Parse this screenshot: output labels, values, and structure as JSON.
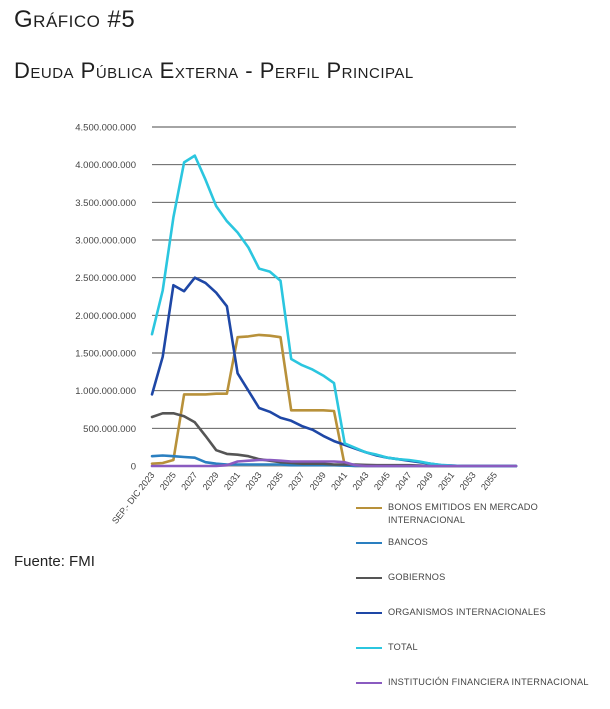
{
  "header": {
    "figure_label": "Gráfico #5",
    "title": "Deuda Pública Externa - Perfil Principal"
  },
  "source": "Fuente: FMI",
  "chart_data": {
    "type": "line",
    "title": "",
    "xlabel": "",
    "ylabel": "",
    "ylim": [
      0,
      4500000000
    ],
    "yticks": [
      0,
      500000000,
      1000000000,
      1500000000,
      2000000000,
      2500000000,
      3000000000,
      3500000000,
      4000000000,
      4500000000
    ],
    "ytick_labels": [
      "0",
      "500.000.000",
      "1.000.000.000",
      "1.500.000.000",
      "2.000.000.000",
      "2.500.000.000",
      "3.000.000.000",
      "3.500.000.000",
      "4.000.000.000",
      "4.500.000.000"
    ],
    "categories": [
      "SEP.- DIC 2023",
      "2024",
      "2025",
      "2026",
      "2027",
      "2028",
      "2029",
      "2030",
      "2031",
      "2032",
      "2033",
      "2034",
      "2035",
      "2036",
      "2037",
      "2038",
      "2039",
      "2040",
      "2041",
      "2042",
      "2043",
      "2044",
      "2045",
      "2046",
      "2047",
      "2048",
      "2049",
      "2050",
      "2051",
      "2052",
      "2053",
      "2054",
      "2055",
      "2056",
      "2057"
    ],
    "x_tick_labels": [
      "SEP.- DIC 2023",
      "2025",
      "2027",
      "2029",
      "2031",
      "2033",
      "2035",
      "2037",
      "2039",
      "2041",
      "2043",
      "2045",
      "2047",
      "2049",
      "2051",
      "2053",
      "2055"
    ],
    "grid": "horizontal",
    "legend_position": "bottom-right",
    "series": [
      {
        "name": "Bonos emitidos en mercado internacional",
        "color": "#b8913a",
        "values": [
          30000000,
          40000000,
          80000000,
          950000000,
          950000000,
          950000000,
          960000000,
          960000000,
          1710000000,
          1720000000,
          1740000000,
          1730000000,
          1710000000,
          740000000,
          740000000,
          740000000,
          740000000,
          730000000,
          10000000,
          0,
          0,
          0,
          0,
          0,
          0,
          0,
          0,
          0,
          0,
          0,
          0,
          0,
          0,
          0,
          0
        ]
      },
      {
        "name": "Bancos",
        "color": "#2a7fc0",
        "values": [
          130000000,
          140000000,
          130000000,
          120000000,
          110000000,
          50000000,
          30000000,
          20000000,
          20000000,
          20000000,
          20000000,
          20000000,
          20000000,
          10000000,
          10000000,
          10000000,
          10000000,
          10000000,
          5000000,
          0,
          0,
          0,
          0,
          0,
          0,
          0,
          0,
          0,
          0,
          0,
          0,
          0,
          0,
          0,
          0
        ]
      },
      {
        "name": "Gobiernos",
        "color": "#555555",
        "values": [
          650000000,
          700000000,
          700000000,
          660000000,
          580000000,
          400000000,
          210000000,
          160000000,
          150000000,
          130000000,
          90000000,
          70000000,
          50000000,
          40000000,
          30000000,
          30000000,
          30000000,
          20000000,
          20000000,
          20000000,
          15000000,
          10000000,
          10000000,
          10000000,
          10000000,
          5000000,
          0,
          0,
          0,
          0,
          0,
          0,
          0,
          0,
          0
        ]
      },
      {
        "name": "Organismos internacionales",
        "color": "#1e47a6",
        "values": [
          950000000,
          1450000000,
          2400000000,
          2320000000,
          2500000000,
          2430000000,
          2300000000,
          2120000000,
          1230000000,
          1000000000,
          770000000,
          720000000,
          640000000,
          600000000,
          530000000,
          480000000,
          400000000,
          330000000,
          280000000,
          230000000,
          180000000,
          140000000,
          110000000,
          90000000,
          70000000,
          50000000,
          30000000,
          10000000,
          5000000,
          0,
          0,
          0,
          0,
          0,
          0
        ]
      },
      {
        "name": "Total",
        "color": "#2bc6df",
        "values": [
          1750000000,
          2330000000,
          3300000000,
          4030000000,
          4120000000,
          3800000000,
          3450000000,
          3250000000,
          3100000000,
          2900000000,
          2620000000,
          2580000000,
          2460000000,
          1420000000,
          1340000000,
          1280000000,
          1200000000,
          1100000000,
          300000000,
          240000000,
          180000000,
          150000000,
          110000000,
          90000000,
          80000000,
          60000000,
          30000000,
          15000000,
          5000000,
          0,
          0,
          0,
          0,
          0,
          0
        ]
      },
      {
        "name": "Institución financiera internacional",
        "color": "#8a5bc0",
        "values": [
          0,
          0,
          0,
          0,
          0,
          0,
          0,
          10000000,
          60000000,
          70000000,
          80000000,
          80000000,
          70000000,
          60000000,
          60000000,
          60000000,
          60000000,
          60000000,
          50000000,
          10000000,
          0,
          0,
          0,
          0,
          0,
          0,
          0,
          0,
          0,
          0,
          0,
          0,
          0,
          0,
          0
        ]
      }
    ]
  }
}
